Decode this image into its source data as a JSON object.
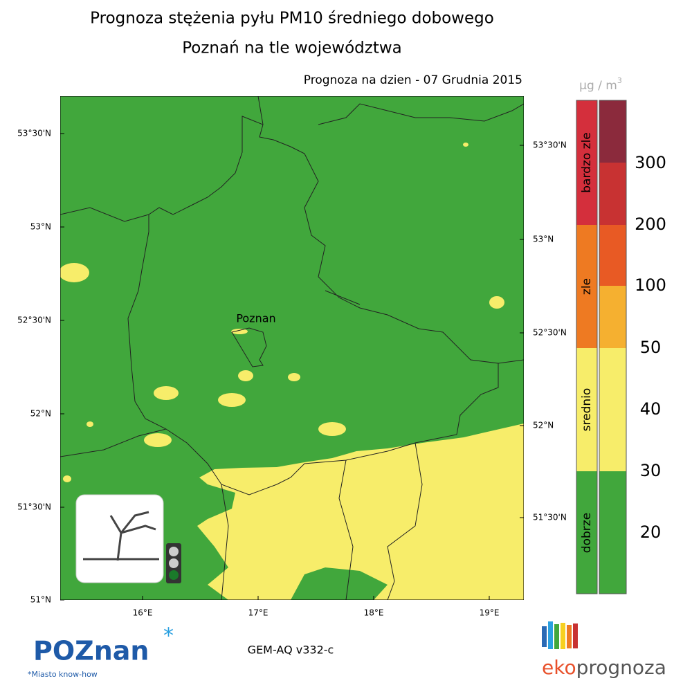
{
  "header": {
    "title": [
      "Prognoza stężenia pyłu PM10 średniego dobowego",
      "Poznań na tle województwa"
    ],
    "date_label": "Prognoza na dzien -  07 Grudnia 2015"
  },
  "map": {
    "city": "Poznan",
    "lat_labels_left": [
      "53°30'N",
      "53°N",
      "52°30'N",
      "52°N",
      "51°30'N",
      "51°N"
    ],
    "lat_labels_right": [
      "53°30'N",
      "53°N",
      "52°30'N",
      "52°N",
      "51°30'N"
    ],
    "lon_labels": [
      "16°E",
      "17°E",
      "18°E",
      "19°E"
    ]
  },
  "legend": {
    "unit": {
      "base": "µg / m",
      "exp": "3"
    },
    "classes": [
      "bardzo zle",
      "zle",
      "srednio",
      "dobrze"
    ],
    "ticks": [
      300,
      200,
      100,
      50,
      40,
      30,
      20
    ]
  },
  "footer": {
    "model": "GEM-AQ v332-c",
    "poznan_logo": "POZnan",
    "poznan_tagline": "*Miasto know-how",
    "eko_logo": [
      "eko",
      "prognoza"
    ]
  }
}
